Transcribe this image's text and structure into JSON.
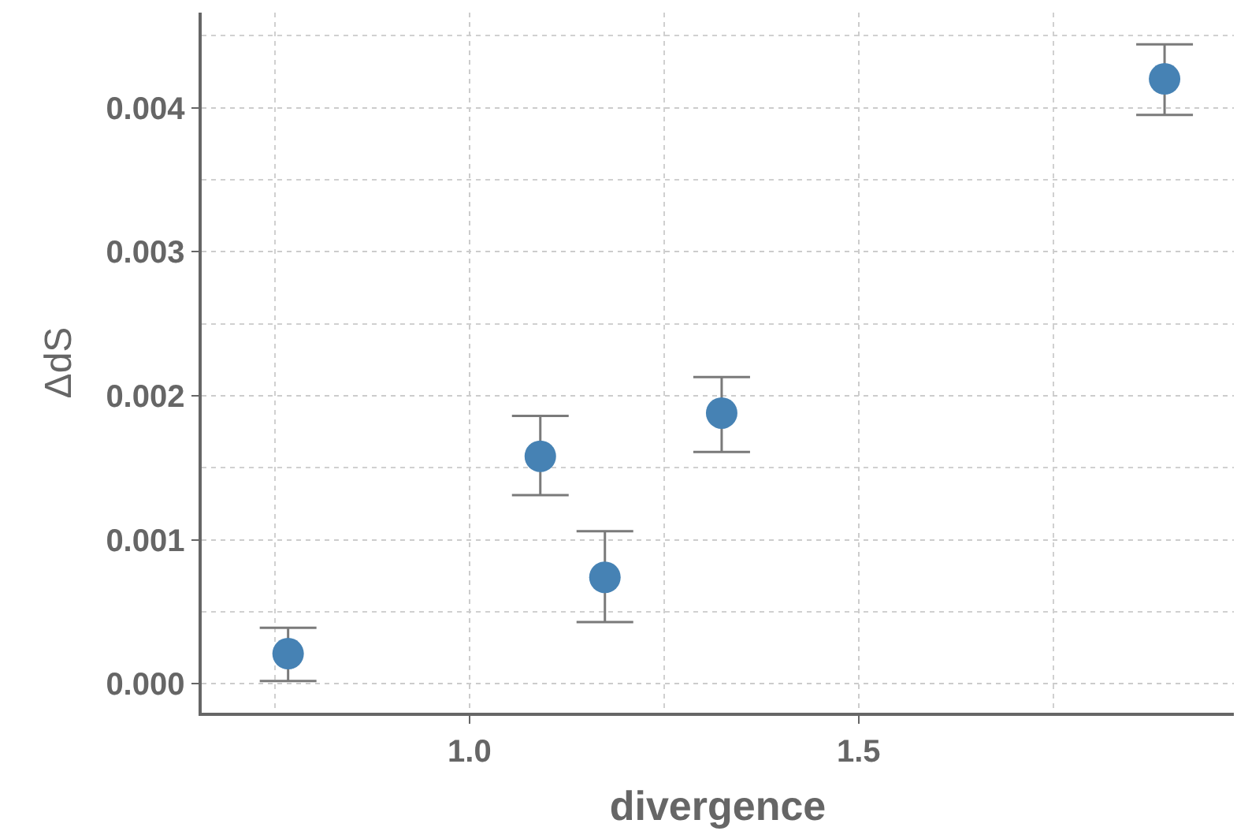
{
  "chart_data": {
    "type": "scatter",
    "xlabel": "divergence",
    "ylabel": "ΔdS",
    "x": [
      0.767,
      1.091,
      1.174,
      1.324,
      1.893
    ],
    "values": [
      0.00021,
      0.00158,
      0.00074,
      0.00188,
      0.0042
    ],
    "errors": [
      [
        2e-05,
        0.00039
      ],
      [
        0.00131,
        0.00186
      ],
      [
        0.00043,
        0.00106
      ],
      [
        0.00161,
        0.00213
      ],
      [
        0.00395,
        0.00444
      ]
    ],
    "color": "#4682b4",
    "marker": "circle",
    "grid": true,
    "legend": false,
    "xlim": [
      0.656,
      1.982
    ],
    "xticks": [
      {
        "value": 1.0,
        "label": "1.0"
      },
      1.5
    ],
    "ylim": [
      -0.0002,
      0.00466
    ],
    "yticks": [
      {
        "value": 0,
        "label": "0.000"
      },
      {
        "value": 0.001,
        "label": "0.001"
      },
      {
        "value": 0.002,
        "label": "0.002"
      },
      {
        "value": 0.003,
        "label": "0.003"
      },
      {
        "value": 0.004,
        "label": "0.004"
      }
    ]
  }
}
